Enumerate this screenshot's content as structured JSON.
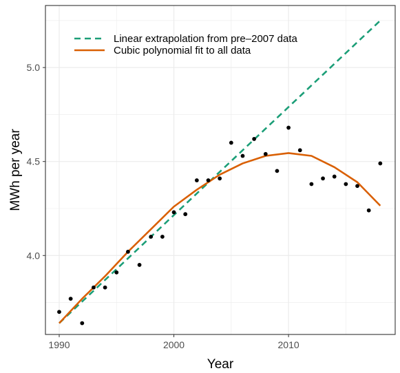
{
  "chart_data": {
    "type": "scatter",
    "title": "",
    "xlabel": "Year",
    "ylabel": "MWh per year",
    "xlim": [
      1988.8,
      2019.3
    ],
    "ylim": [
      3.58,
      5.33
    ],
    "x_ticks": [
      1990,
      2000,
      2010
    ],
    "y_ticks": [
      4.0,
      4.5,
      5.0
    ],
    "x_tick_labels": [
      "1990",
      "2000",
      "2010"
    ],
    "y_tick_labels": [
      "4.0",
      "4.5",
      "5.0"
    ],
    "grid": true,
    "legend_position": "top-left",
    "points": {
      "x": [
        1990,
        1991,
        1992,
        1993,
        1994,
        1995,
        1996,
        1997,
        1998,
        1999,
        2000,
        2001,
        2002,
        2003,
        2004,
        2005,
        2006,
        2007,
        2008,
        2009,
        2010,
        2011,
        2012,
        2013,
        2014,
        2015,
        2016,
        2017,
        2018
      ],
      "y": [
        3.7,
        3.77,
        3.64,
        3.83,
        3.83,
        3.91,
        4.02,
        3.95,
        4.1,
        4.1,
        4.23,
        4.22,
        4.4,
        4.4,
        4.41,
        4.6,
        4.53,
        4.62,
        4.54,
        4.45,
        4.68,
        4.56,
        4.38,
        4.41,
        4.42,
        4.38,
        4.37,
        4.24,
        4.49
      ]
    },
    "series": [
      {
        "name": "Linear extrapolation from pre–2007 data",
        "style": "dashed",
        "color": "#1b9e77",
        "x": [
          1990,
          2018
        ],
        "y": [
          3.64,
          5.25
        ]
      },
      {
        "name": "Cubic polynomial fit to all data",
        "style": "solid",
        "color": "#d95f02",
        "x": [
          1990,
          1992,
          1994,
          1996,
          1998,
          2000,
          2002,
          2004,
          2006,
          2008,
          2010,
          2012,
          2014,
          2016,
          2018
        ],
        "y": [
          3.64,
          3.77,
          3.89,
          4.02,
          4.14,
          4.26,
          4.35,
          4.43,
          4.49,
          4.53,
          4.545,
          4.53,
          4.47,
          4.39,
          4.265
        ]
      }
    ]
  }
}
